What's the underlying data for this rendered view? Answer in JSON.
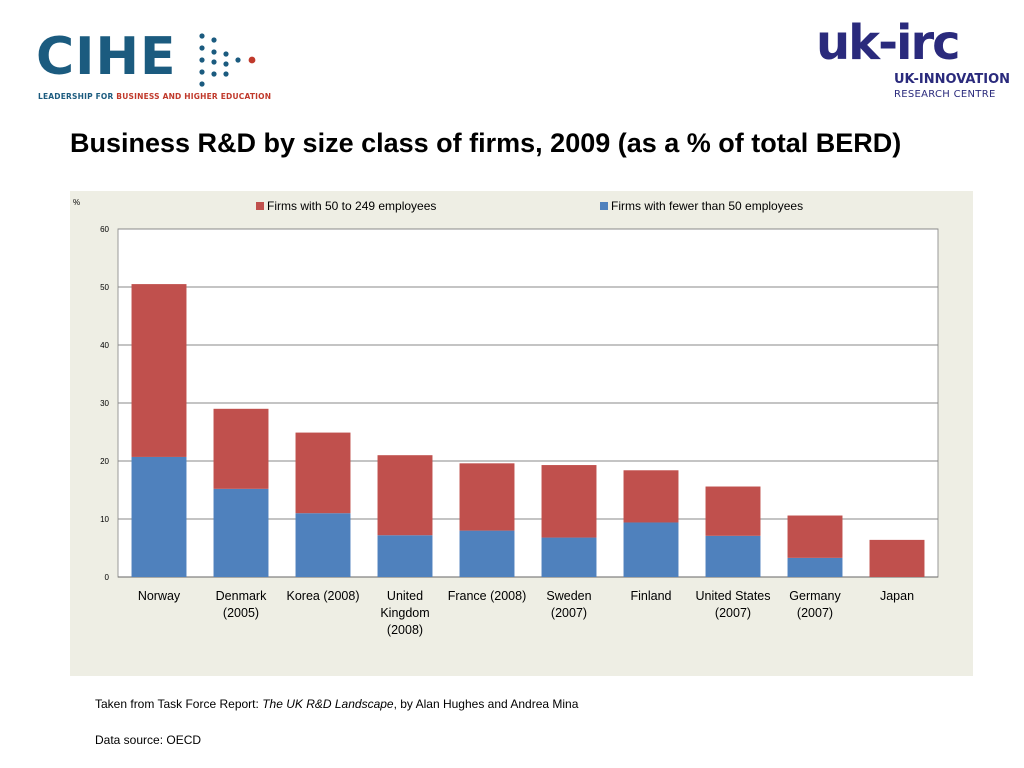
{
  "logos": {
    "left": {
      "name": "CIHE",
      "tagline_pre": "LEADERSHIP FOR ",
      "tagline_highlight": "BUSINESS AND HIGHER EDUCATION",
      "dot_color": "#1b5b7f",
      "accent_color": "#c0392b"
    },
    "right": {
      "name": "uk-irc",
      "line1": "UK-INNOVATION",
      "line2": "RESEARCH CENTRE",
      "color": "#2a2a7c"
    }
  },
  "title": "Business R&D by size class of firms, 2009 (as a % of total BERD)",
  "chart_data": {
    "type": "bar",
    "stacked": true,
    "title": "",
    "ylabel": "%",
    "ylim": [
      0,
      60
    ],
    "yticks": [
      0,
      10,
      20,
      30,
      40,
      50,
      60
    ],
    "grid": true,
    "legend": "top",
    "categories": [
      "Norway",
      "Denmark\n(2005)",
      "Korea (2008)",
      "United\nKingdom\n(2008)",
      "France (2008)",
      "Sweden\n(2007)",
      "Finland",
      "United States\n(2007)",
      "Germany\n(2007)",
      "Japan"
    ],
    "series": [
      {
        "name": "Firms with fewer than 50 employees",
        "color": "#4f81bd",
        "values": [
          20.7,
          15.2,
          11.0,
          7.2,
          8.0,
          6.8,
          9.4,
          7.1,
          3.3,
          0
        ]
      },
      {
        "name": "Firms with 50 to 249 employees",
        "color": "#c0504d",
        "values": [
          29.8,
          13.8,
          13.9,
          13.8,
          11.6,
          12.5,
          9.0,
          8.5,
          7.3,
          6.4
        ]
      }
    ],
    "legend_order": [
      1,
      0
    ]
  },
  "footer": {
    "caption_pre": "Taken from Task Force Report: ",
    "caption_title": "The UK R&D Landscape",
    "caption_post": ", by Alan Hughes and Andrea Mina",
    "source": "Data source: OECD"
  }
}
